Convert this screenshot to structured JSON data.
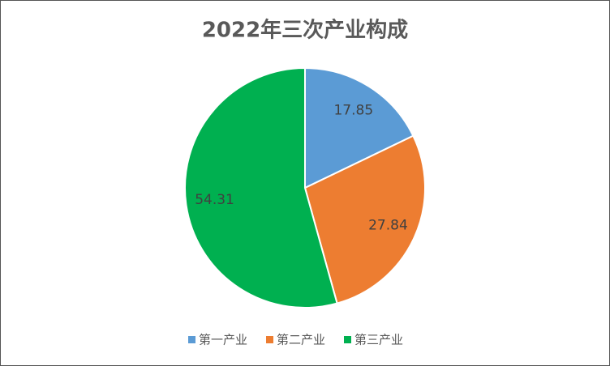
{
  "chart_data": {
    "type": "pie",
    "title": "2022年三次产业构成",
    "categories": [
      "第一产业",
      "第二产业",
      "第三产业"
    ],
    "values": [
      17.85,
      27.84,
      54.31
    ],
    "colors": [
      "#5b9bd5",
      "#ed7d31",
      "#00b050"
    ],
    "legend": "bottom"
  }
}
